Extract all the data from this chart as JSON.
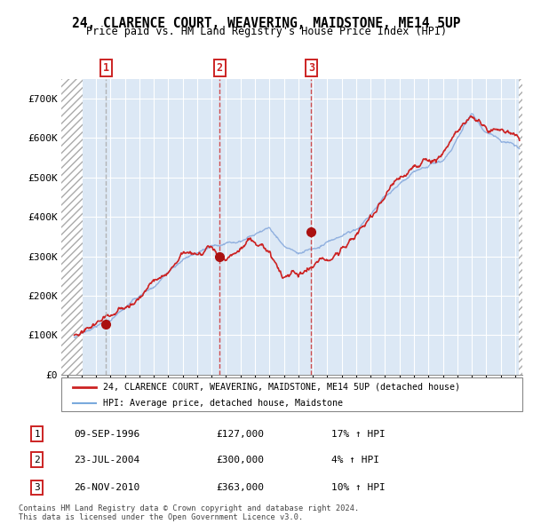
{
  "title": "24, CLARENCE COURT, WEAVERING, MAIDSTONE, ME14 5UP",
  "subtitle": "Price paid vs. HM Land Registry's House Price Index (HPI)",
  "background_color": "#ffffff",
  "plot_bg_color": "#dce8f5",
  "ylim": [
    0,
    750000
  ],
  "yticks": [
    0,
    100000,
    200000,
    300000,
    400000,
    500000,
    600000,
    700000
  ],
  "ytick_labels": [
    "£0",
    "£100K",
    "£200K",
    "£300K",
    "£400K",
    "£500K",
    "£600K",
    "£700K"
  ],
  "xlim_start": 1993.6,
  "xlim_end": 2025.5,
  "hatch_end": 1995.08,
  "purchases": [
    {
      "date_num": 1996.69,
      "price": 127000,
      "label": "1",
      "vline_color": "#aaaaaa",
      "vline_style": "--"
    },
    {
      "date_num": 2004.56,
      "price": 300000,
      "label": "2",
      "vline_color": "#cc3333",
      "vline_style": "--"
    },
    {
      "date_num": 2010.9,
      "price": 363000,
      "label": "3",
      "vline_color": "#cc3333",
      "vline_style": "--"
    }
  ],
  "legend_line1": "24, CLARENCE COURT, WEAVERING, MAIDSTONE, ME14 5UP (detached house)",
  "legend_line2": "HPI: Average price, detached house, Maidstone",
  "legend_color1": "#cc2222",
  "legend_color2": "#7aaadd",
  "table_rows": [
    {
      "num": "1",
      "date": "09-SEP-1996",
      "price": "£127,000",
      "hpi": "17% ↑ HPI"
    },
    {
      "num": "2",
      "date": "23-JUL-2004",
      "price": "£300,000",
      "hpi": "4% ↑ HPI"
    },
    {
      "num": "3",
      "date": "26-NOV-2010",
      "price": "£363,000",
      "hpi": "10% ↑ HPI"
    }
  ],
  "footer": "Contains HM Land Registry data © Crown copyright and database right 2024.\nThis data is licensed under the Open Government Licence v3.0.",
  "hpi_line_color": "#88aadd",
  "price_line_color": "#cc2222",
  "dot_color": "#aa1111",
  "grid_color": "#ffffff"
}
